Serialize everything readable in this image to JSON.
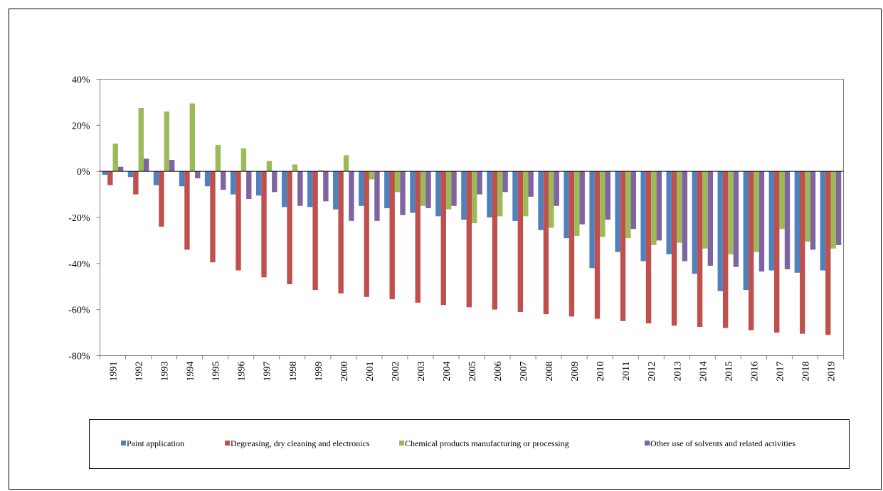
{
  "chart_data": {
    "type": "bar",
    "title": "",
    "xlabel": "",
    "ylabel": "",
    "ylim": [
      -80,
      40
    ],
    "y_ticks": [
      "-80%",
      "-60%",
      "-40%",
      "-20%",
      "0%",
      "20%",
      "40%"
    ],
    "y_tick_values": [
      -80,
      -60,
      -40,
      -20,
      0,
      20,
      40
    ],
    "grid": false,
    "legend_position": "bottom",
    "categories": [
      "1991",
      "1992",
      "1993",
      "1994",
      "1995",
      "1996",
      "1997",
      "1998",
      "1999",
      "2000",
      "2001",
      "2002",
      "2003",
      "2004",
      "2005",
      "2006",
      "2007",
      "2008",
      "2009",
      "2010",
      "2011",
      "2012",
      "2013",
      "2014",
      "2015",
      "2016",
      "2017",
      "2018",
      "2019"
    ],
    "series": [
      {
        "name": "Paint application",
        "color": "#4F81BD",
        "values": [
          -1.5,
          -2.5,
          -6,
          -6.5,
          -6.5,
          -10,
          -10.5,
          -15.5,
          -15.5,
          -16.5,
          -15,
          -16,
          -18,
          -19.5,
          -21,
          -20,
          -21.5,
          -25.5,
          -29,
          -42,
          -35,
          -39,
          -36,
          -44.5,
          -52,
          -51.5,
          -43,
          -44,
          -43
        ]
      },
      {
        "name": "Degreasing, dry cleaning and electronics",
        "color": "#C0504D",
        "values": [
          -6,
          -10,
          -24,
          -34,
          -39.5,
          -43,
          -46,
          -49,
          -51.5,
          -53,
          -54.5,
          -55.5,
          -57,
          -58,
          -59,
          -60,
          -61,
          -62,
          -63,
          -64,
          -65,
          -66,
          -67,
          -67.5,
          -68,
          -69,
          -70,
          -70.5,
          -71
        ]
      },
      {
        "name": "Chemical products manufacturing or processing",
        "color": "#9BBB59",
        "values": [
          12,
          27.5,
          26,
          29.5,
          11.5,
          10,
          4.5,
          3,
          0.5,
          7,
          -3.5,
          -9,
          -15,
          -16.5,
          -22.5,
          -19.5,
          -19.5,
          -24.5,
          -28,
          -28.5,
          -29,
          -32,
          -31,
          -33.5,
          -36,
          -35,
          -25,
          -30.5,
          -33.5
        ]
      },
      {
        "name": "Other use of solvents and related activities",
        "color": "#8064A2",
        "values": [
          2,
          5.5,
          5,
          -3,
          -8,
          -12,
          -9,
          -15,
          -13,
          -21.5,
          -21.5,
          -19,
          -16,
          -15,
          -10,
          -9,
          -11,
          -15,
          -23,
          -21,
          -25,
          -30,
          -39,
          -41,
          -41.5,
          -43.5,
          -42.5,
          -34,
          -32
        ]
      }
    ]
  }
}
